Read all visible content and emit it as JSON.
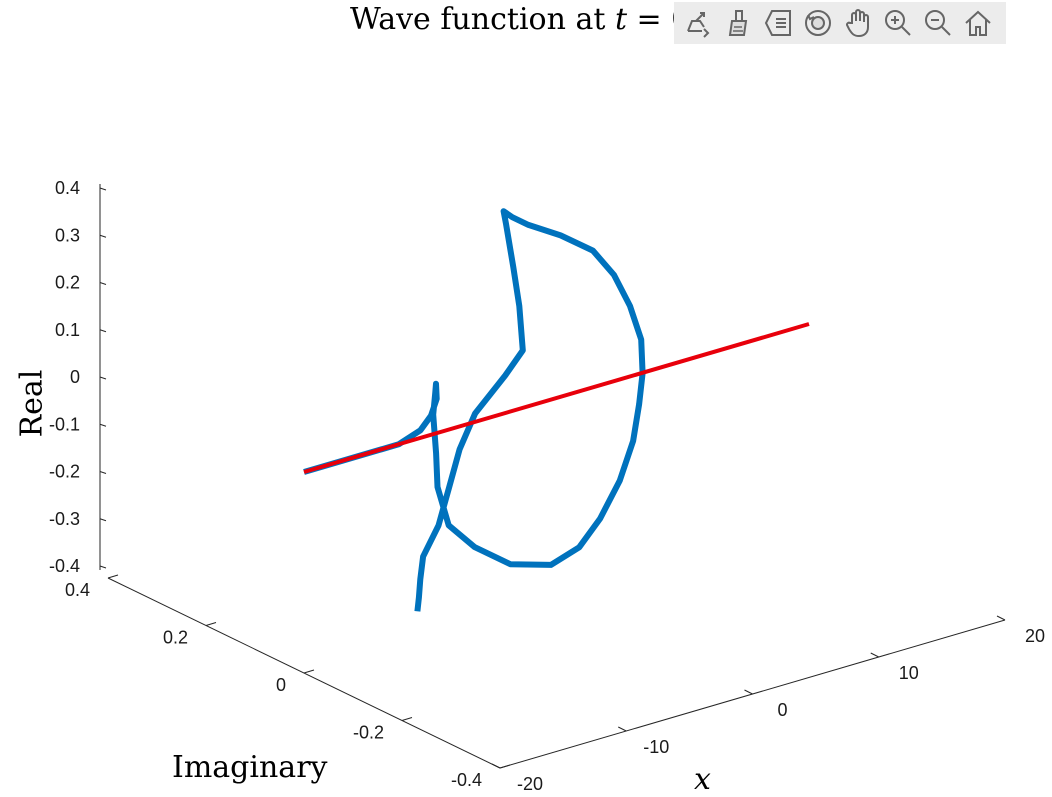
{
  "title": {
    "prefix": "Wave function at ",
    "var": "t",
    "suffix": " = 0"
  },
  "toolbar": {
    "buttons": [
      {
        "name": "export-icon"
      },
      {
        "name": "brush-icon"
      },
      {
        "name": "data-tips-icon"
      },
      {
        "name": "rotate-3d-icon"
      },
      {
        "name": "pan-hand-icon"
      },
      {
        "name": "zoom-in-icon"
      },
      {
        "name": "zoom-out-icon"
      },
      {
        "name": "home-icon"
      }
    ]
  },
  "axes": {
    "zlabel": "Real",
    "ylabel": "Imaginary",
    "xlabel": "x"
  },
  "colors": {
    "wave": "#0072BD",
    "axis_line": "#E8000B",
    "axis_box": "#262626"
  },
  "chart_data": {
    "type": "line",
    "plot3d": true,
    "xlabel": "x",
    "ylabel": "Imaginary",
    "zlabel": "Real",
    "xlim": [
      -20,
      20
    ],
    "ylim": [
      -0.4,
      0.4
    ],
    "zlim": [
      -0.4,
      0.4
    ],
    "x_ticks": [
      -20,
      -10,
      0,
      10,
      20
    ],
    "y_ticks": [
      -0.4,
      -0.2,
      0,
      0.2,
      0.4
    ],
    "z_ticks": [
      -0.4,
      -0.3,
      -0.2,
      -0.1,
      0,
      0.1,
      0.2,
      0.3,
      0.4
    ],
    "x_tick_labels": [
      "-20",
      "-10",
      "0",
      "10",
      "20"
    ],
    "y_tick_labels": [
      "-0.4",
      "-0.2",
      "0",
      "0.2",
      "0.4"
    ],
    "z_tick_labels": [
      "-0.4",
      "-0.3",
      "-0.2",
      "-0.1",
      "0",
      "0.1",
      "0.2",
      "0.3",
      "0.4"
    ],
    "grid": false,
    "series": [
      {
        "color": "#0072BD",
        "x": [
          -20,
          -17.5,
          -15,
          -12.5,
          -10,
          -8,
          -6,
          -4.5,
          -3,
          -2,
          -1,
          -0.5,
          0,
          0.5,
          1,
          1.5,
          1.8,
          1.9,
          1.9,
          1.8,
          1.5,
          1,
          0.5,
          0,
          -0.5,
          -1,
          -2,
          -3,
          -3.5,
          -3.8,
          -4,
          -4.2,
          -4.5,
          -5,
          -6,
          -8,
          -10,
          -12,
          -14,
          -16,
          -17,
          -17.5,
          -18
        ],
        "imag": [
          0.0,
          0.0,
          0.0,
          0.0,
          0.02,
          0.05,
          0.09,
          0.13,
          0.17,
          0.2,
          0.22,
          0.23,
          0.22,
          0.18,
          0.12,
          0.05,
          0.0,
          -0.04,
          -0.08,
          -0.11,
          -0.13,
          -0.15,
          -0.16,
          -0.15,
          -0.13,
          -0.1,
          -0.06,
          -0.02,
          0.0,
          0.01,
          0.0,
          -0.02,
          -0.04,
          -0.06,
          -0.05,
          -0.04,
          -0.06,
          -0.09,
          -0.12,
          -0.14,
          -0.16,
          -0.17,
          -0.18
        ],
        "real": [
          0.0,
          0.0,
          0.0,
          0.0,
          0.0,
          0.0,
          0.0,
          0.0,
          -0.05,
          -0.12,
          -0.22,
          -0.3,
          -0.38,
          -0.41,
          -0.42,
          -0.39,
          -0.33,
          -0.25,
          -0.15,
          -0.05,
          0.04,
          0.12,
          0.2,
          0.27,
          0.33,
          0.37,
          0.39,
          0.4,
          0.41,
          0.42,
          0.4,
          0.32,
          0.25,
          0.17,
          0.12,
          0.05,
          0.0,
          -0.05,
          -0.1,
          -0.14,
          -0.17,
          -0.2,
          -0.22
        ]
      },
      {
        "color": "#E8000B",
        "x": [
          -20,
          20
        ],
        "imag": [
          0,
          0
        ],
        "real": [
          0,
          0
        ]
      }
    ]
  }
}
